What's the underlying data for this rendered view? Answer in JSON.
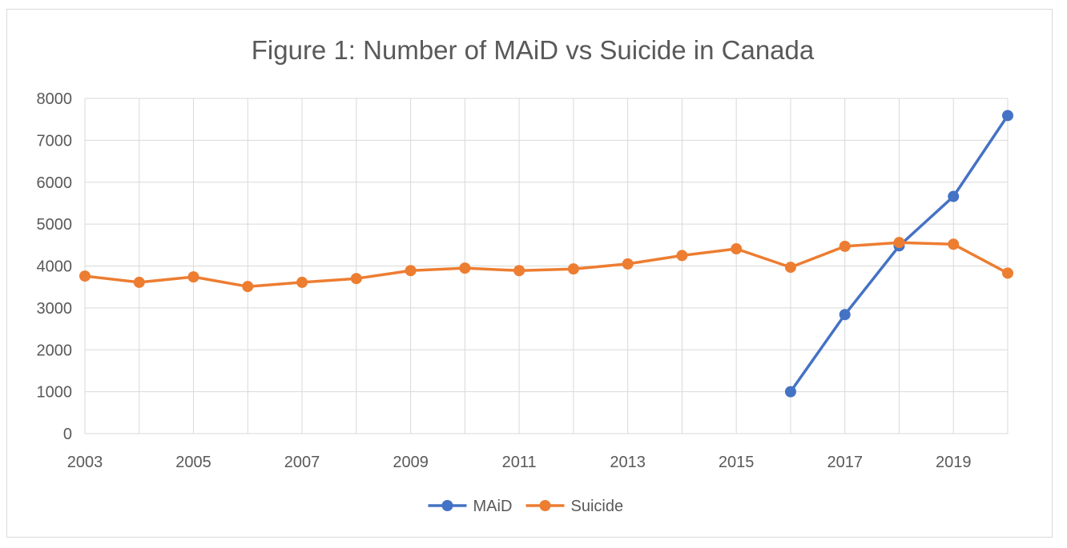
{
  "chart_data": {
    "type": "line",
    "title": "Figure 1: Number of MAiD vs Suicide in Canada",
    "xlabel": "",
    "ylabel": "",
    "xlim": [
      2003,
      2020
    ],
    "ylim": [
      0,
      8000
    ],
    "x_ticks": [
      2003,
      2005,
      2007,
      2009,
      2011,
      2013,
      2015,
      2017,
      2019
    ],
    "y_ticks": [
      0,
      1000,
      2000,
      3000,
      4000,
      5000,
      6000,
      7000,
      8000
    ],
    "grid": true,
    "legend_position": "bottom",
    "series": [
      {
        "name": "MAiD",
        "color": "#4472c4",
        "points": [
          {
            "x": 2016,
            "y": 1000
          },
          {
            "x": 2017,
            "y": 2840
          },
          {
            "x": 2018,
            "y": 4480
          },
          {
            "x": 2019,
            "y": 5660
          },
          {
            "x": 2020,
            "y": 7590
          }
        ]
      },
      {
        "name": "Suicide",
        "color": "#ed7d31",
        "points": [
          {
            "x": 2003,
            "y": 3760
          },
          {
            "x": 2004,
            "y": 3610
          },
          {
            "x": 2005,
            "y": 3740
          },
          {
            "x": 2006,
            "y": 3510
          },
          {
            "x": 2007,
            "y": 3610
          },
          {
            "x": 2008,
            "y": 3700
          },
          {
            "x": 2009,
            "y": 3890
          },
          {
            "x": 2010,
            "y": 3950
          },
          {
            "x": 2011,
            "y": 3890
          },
          {
            "x": 2012,
            "y": 3930
          },
          {
            "x": 2013,
            "y": 4050
          },
          {
            "x": 2014,
            "y": 4250
          },
          {
            "x": 2015,
            "y": 4410
          },
          {
            "x": 2016,
            "y": 3970
          },
          {
            "x": 2017,
            "y": 4470
          },
          {
            "x": 2018,
            "y": 4560
          },
          {
            "x": 2019,
            "y": 4520
          },
          {
            "x": 2020,
            "y": 3830
          }
        ]
      }
    ]
  }
}
